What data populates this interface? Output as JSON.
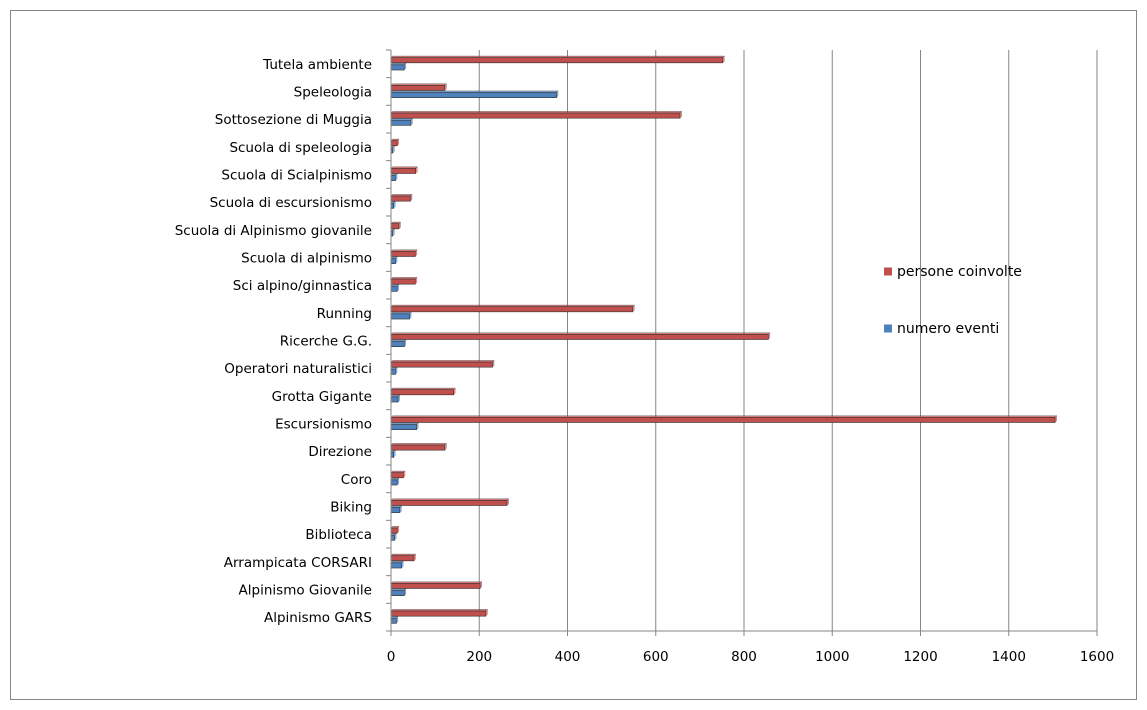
{
  "chart_data": {
    "type": "bar",
    "orientation": "horizontal",
    "title": "",
    "xlabel": "",
    "ylabel": "",
    "xlim": [
      0,
      1600
    ],
    "x_ticks": [
      0,
      200,
      400,
      600,
      800,
      1000,
      1200,
      1400,
      1600
    ],
    "grid": "vertical major gridlines",
    "legend_position": "right",
    "categories": [
      "Alpinismo GARS",
      "Alpinismo Giovanile",
      "Arrampicata CORSARI",
      "Biblioteca",
      "Biking",
      "Coro",
      "Direzione",
      "Escursionismo",
      "Grotta Gigante",
      "Operatori naturalistici",
      "Ricerche G.G.",
      "Running",
      "Sci alpino/ginnastica",
      "Scuola di alpinismo",
      "Scuola di Alpinismo giovanile",
      "Scuola di escursionismo",
      "Scuola di Scialpinismo",
      "Scuola di speleologia",
      "Sottosezione di Muggia",
      "Speleologia",
      "Tutela ambiente"
    ],
    "series": [
      {
        "name": "numero eventi",
        "color": "#4f81bd",
        "values": [
          12,
          30,
          24,
          8,
          20,
          14,
          6,
          58,
          16,
          10,
          30,
          42,
          14,
          10,
          4,
          6,
          10,
          4,
          45,
          375,
          30
        ]
      },
      {
        "name": "persone coinvolte",
        "color": "#c0504d",
        "values": [
          215,
          202,
          52,
          14,
          263,
          28,
          122,
          1505,
          142,
          230,
          855,
          548,
          55,
          55,
          18,
          44,
          56,
          14,
          655,
          122,
          752
        ]
      }
    ]
  }
}
